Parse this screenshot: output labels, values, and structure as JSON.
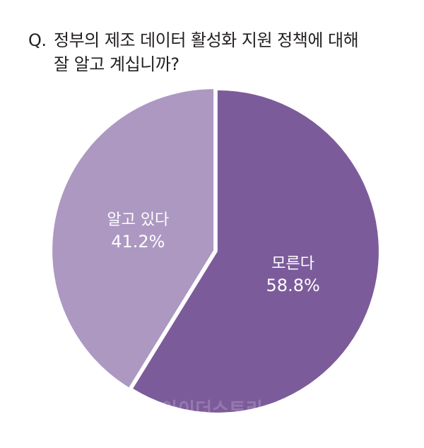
{
  "question": {
    "prefix": "Q.",
    "line1": "정부의 제조 데이터 활성화 지원 정책에 대해",
    "line2": "잘 알고 계십니까?"
  },
  "watermark": "아이더스토리",
  "chart_data": {
    "type": "pie",
    "title": "Q. 정부의 제조 데이터 활성화 지원 정책에 대해 잘 알고 계십니까?",
    "slices": [
      {
        "label": "모른다",
        "value": 58.8,
        "display": "58.8%",
        "color": "#7c5b9b"
      },
      {
        "label": "알고 있다",
        "value": 41.2,
        "display": "41.2%",
        "color": "#ad98c2"
      }
    ],
    "start_angle_deg": 0,
    "direction": "clockwise",
    "separator_color": "#ffffff"
  }
}
